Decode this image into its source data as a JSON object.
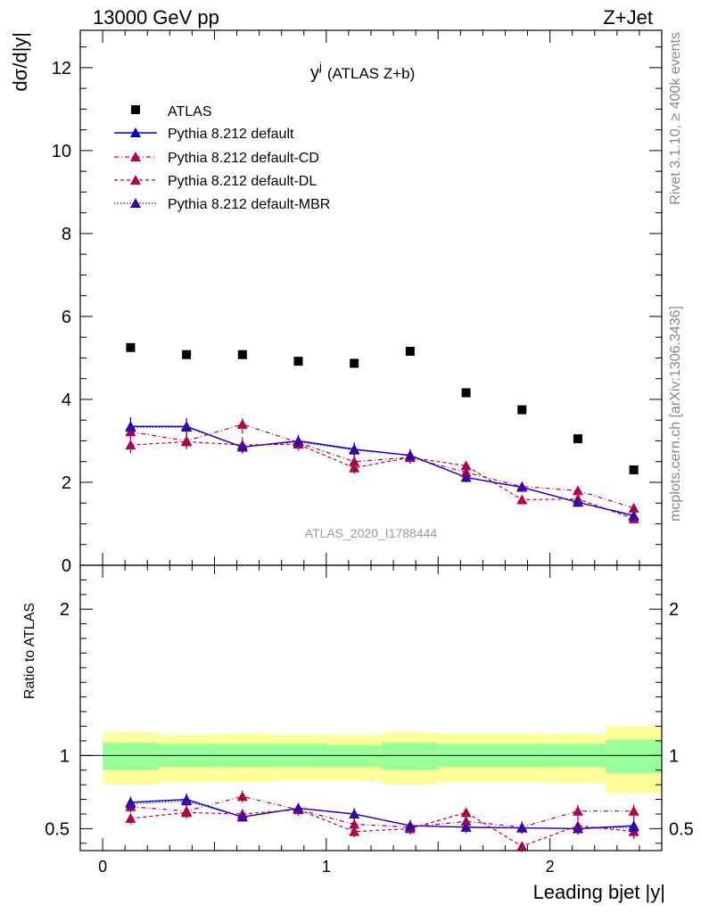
{
  "header": {
    "left": "13000 GeV pp",
    "right": "Z+Jet",
    "title": "y",
    "title_sup": "j",
    "title_suffix": "(ATLAS Z+b)",
    "side_rivet": "Rivet 3.1.10, ≥ 400k events",
    "side_mcplots": "mcplots.cern.ch [arXiv:1306.3436]",
    "watermark": "ATLAS_2020_I1788444"
  },
  "colors": {
    "atlas": "#000000",
    "default": "#0000cc",
    "cd": "#b0004c",
    "dl": "#b0004c",
    "mbr": "#3a00a8",
    "band_outer": "#ffff99",
    "band_inner": "#99ff99"
  },
  "chart_data": [
    {
      "type": "scatter",
      "panel": "main",
      "title": "y (ATLAS Z+b)",
      "xlabel": "Leading bjet |y|",
      "ylabel": "dσ/d|y|",
      "xlim": [
        -0.1,
        2.5
      ],
      "ylim": [
        0,
        12.9
      ],
      "yticks": [
        0,
        2,
        4,
        6,
        8,
        10,
        12
      ],
      "ytick_labels": [
        "0",
        "2",
        "4",
        "6",
        "8",
        "10",
        "12"
      ],
      "x": [
        0.125,
        0.375,
        0.625,
        0.875,
        1.125,
        1.375,
        1.625,
        1.875,
        2.125,
        2.375
      ],
      "x_edges": [
        0,
        0.25,
        0.5,
        0.75,
        1.0,
        1.25,
        1.5,
        1.75,
        2.0,
        2.25,
        2.5
      ],
      "legend": [
        "ATLAS",
        "Pythia 8.212 default",
        "Pythia 8.212 default-CD",
        "Pythia 8.212 default-DL",
        "Pythia 8.212 default-MBR"
      ],
      "series": [
        {
          "name": "ATLAS",
          "key": "atlas",
          "values": [
            5.25,
            5.08,
            5.08,
            4.92,
            4.87,
            5.16,
            4.16,
            3.75,
            3.05,
            2.3
          ]
        },
        {
          "name": "Pythia 8.212 default",
          "key": "default",
          "values": [
            3.35,
            3.35,
            2.85,
            3.0,
            2.8,
            2.65,
            2.12,
            1.88,
            1.52,
            1.2
          ],
          "errors": [
            0.22,
            0.2,
            0.15,
            0.15,
            0.16,
            0.15,
            0.12,
            0.1,
            0.09,
            0.08
          ]
        },
        {
          "name": "Pythia 8.212 default-CD",
          "key": "cd",
          "values": [
            3.22,
            3.0,
            3.4,
            2.96,
            2.5,
            2.6,
            2.24,
            1.9,
            1.8,
            1.38
          ],
          "errors": [
            0.2,
            0.18,
            0.22,
            0.15,
            0.16,
            0.15,
            0.12,
            0.1,
            0.1,
            0.08
          ]
        },
        {
          "name": "Pythia 8.212 default-DL",
          "key": "dl",
          "values": [
            2.9,
            2.98,
            2.9,
            2.92,
            2.35,
            2.6,
            2.4,
            1.58,
            1.6,
            1.12
          ],
          "errors": [
            0.2,
            0.18,
            0.2,
            0.15,
            0.15,
            0.15,
            0.13,
            0.1,
            0.1,
            0.08
          ]
        },
        {
          "name": "Pythia 8.212 default-MBR",
          "key": "mbr",
          "values": [
            3.33,
            3.33,
            2.85,
            2.98,
            2.78,
            2.65,
            2.12,
            1.88,
            1.52,
            1.18
          ],
          "errors": [
            0.22,
            0.2,
            0.15,
            0.15,
            0.16,
            0.15,
            0.12,
            0.1,
            0.09,
            0.08
          ]
        }
      ]
    },
    {
      "type": "line",
      "panel": "ratio",
      "xlabel": "Leading bjet |y|",
      "ylabel": "Ratio to ATLAS",
      "xlim": [
        -0.1,
        2.5
      ],
      "ylim": [
        0.35,
        2.3
      ],
      "yticks": [
        0.5,
        1,
        2
      ],
      "ytick_labels": [
        "0.5",
        "1",
        "2"
      ],
      "xticks": [
        0,
        1,
        2
      ],
      "xtick_labels": [
        "0",
        "1",
        "2"
      ],
      "band_inner": [
        [
          0.9,
          1.09
        ],
        [
          0.92,
          1.08
        ],
        [
          0.92,
          1.08
        ],
        [
          0.92,
          1.08
        ],
        [
          0.92,
          1.07
        ],
        [
          0.9,
          1.09
        ],
        [
          0.92,
          1.08
        ],
        [
          0.92,
          1.08
        ],
        [
          0.92,
          1.08
        ],
        [
          0.88,
          1.11
        ]
      ],
      "band_outer": [
        [
          0.8,
          1.16
        ],
        [
          0.82,
          1.14
        ],
        [
          0.82,
          1.15
        ],
        [
          0.83,
          1.14
        ],
        [
          0.83,
          1.14
        ],
        [
          0.8,
          1.16
        ],
        [
          0.82,
          1.15
        ],
        [
          0.82,
          1.15
        ],
        [
          0.81,
          1.15
        ],
        [
          0.74,
          1.2
        ]
      ],
      "series": [
        {
          "name": "Pythia 8.212 default",
          "key": "default",
          "values": [
            0.68,
            0.7,
            0.58,
            0.64,
            0.6,
            0.52,
            0.51,
            0.505,
            0.5,
            0.52
          ],
          "errors": [
            0.04,
            0.04,
            0.03,
            0.03,
            0.04,
            0.04,
            0.04,
            0.04,
            0.04,
            0.04
          ]
        },
        {
          "name": "Pythia 8.212 default-CD",
          "key": "cd",
          "values": [
            0.65,
            0.62,
            0.72,
            0.63,
            0.53,
            0.51,
            0.55,
            0.51,
            0.62,
            0.62
          ],
          "errors": [
            0.04,
            0.04,
            0.04,
            0.04,
            0.04,
            0.04,
            0.04,
            0.04,
            0.06,
            0.06
          ]
        },
        {
          "name": "Pythia 8.212 default-DL",
          "key": "dl",
          "values": [
            0.57,
            0.61,
            0.6,
            0.63,
            0.48,
            0.5,
            0.61,
            0.38,
            0.52,
            0.48
          ],
          "errors": [
            0.04,
            0.04,
            0.04,
            0.04,
            0.04,
            0.04,
            0.04,
            0.04,
            0.05,
            0.05
          ]
        },
        {
          "name": "Pythia 8.212 default-MBR",
          "key": "mbr",
          "values": [
            0.67,
            0.69,
            0.58,
            0.64,
            0.6,
            0.52,
            0.51,
            0.505,
            0.5,
            0.51
          ],
          "errors": [
            0.04,
            0.04,
            0.03,
            0.03,
            0.04,
            0.04,
            0.04,
            0.04,
            0.04,
            0.04
          ]
        }
      ]
    }
  ]
}
